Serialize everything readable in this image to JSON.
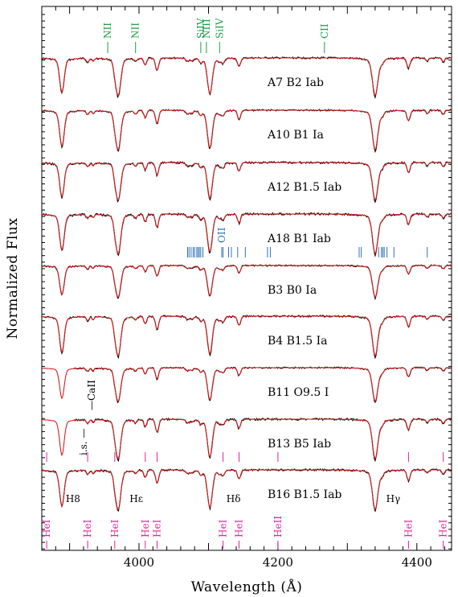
{
  "chart_data": {
    "type": "line",
    "xlabel": "Wavelength (Å)",
    "ylabel": "Normalized Flux",
    "xlim": [
      3860,
      4450
    ],
    "xticks": [
      4000,
      4200,
      4400
    ],
    "xtick_labels": [
      "4000",
      "4200",
      "4400"
    ],
    "grid": false,
    "legend": "none",
    "colors": {
      "observed": "#000000",
      "model": "#d42020",
      "top_lines": "#1c9e4a",
      "oii": "#2f74b5",
      "hei": "#e0249a"
    },
    "series": [
      {
        "id": "A7",
        "label": "A7   B2 Iab"
      },
      {
        "id": "A10",
        "label": "A10   B1 Ia"
      },
      {
        "id": "A12",
        "label": "A12   B1.5 Iab"
      },
      {
        "id": "A18",
        "label": "A18   B1 Iab"
      },
      {
        "id": "B3",
        "label": "B3   B0 Ia"
      },
      {
        "id": "B4",
        "label": "B4   B1.5 Ia"
      },
      {
        "id": "B11",
        "label": "B11   O9.5 I"
      },
      {
        "id": "B13",
        "label": "B13   B5 Iab"
      },
      {
        "id": "B16",
        "label": "B16   B1.5 Iab"
      }
    ],
    "line_ids_top": [
      {
        "label": "NII",
        "x": 3955
      },
      {
        "label": "NII",
        "x": 3995
      },
      {
        "label": "SiIV",
        "x": 4089
      },
      {
        "label": "NIII",
        "x": 4097
      },
      {
        "label": "SiIV",
        "x": 4116
      },
      {
        "label": "CII",
        "x": 4267
      }
    ],
    "oii_label": {
      "label": "OII",
      "x": 4119
    },
    "oii_ticks": [
      4070,
      4072,
      4075,
      4078,
      4080,
      4083,
      4085,
      4087,
      4089,
      4092,
      4119,
      4121,
      4129,
      4133,
      4142,
      4153,
      4185,
      4189,
      4317,
      4320,
      4345,
      4349,
      4351,
      4353,
      4357,
      4367,
      4415
    ],
    "hei_lines": [
      {
        "label": "HeI",
        "x": 3867
      },
      {
        "label": "HeI",
        "x": 3926
      },
      {
        "label": "HeI",
        "x": 3965
      },
      {
        "label": "HeI",
        "x": 4009
      },
      {
        "label": "HeI",
        "x": 4026
      },
      {
        "label": "HeI",
        "x": 4121
      },
      {
        "label": "HeI",
        "x": 4144
      },
      {
        "label": "HeII",
        "x": 4200
      },
      {
        "label": "HeI",
        "x": 4388
      },
      {
        "label": "HeI",
        "x": 4438
      }
    ],
    "balmer_labels": [
      {
        "label": "H8",
        "x": 3905
      },
      {
        "label": "Hε",
        "x": 3996
      },
      {
        "label": "Hδ",
        "x": 4136
      },
      {
        "label": "Hγ",
        "x": 4366
      }
    ],
    "annotations": [
      {
        "label": "—CaII",
        "x": 3934,
        "series": "B11"
      },
      {
        "label": "i.s. —",
        "x": 3934,
        "series": "B13"
      }
    ]
  }
}
